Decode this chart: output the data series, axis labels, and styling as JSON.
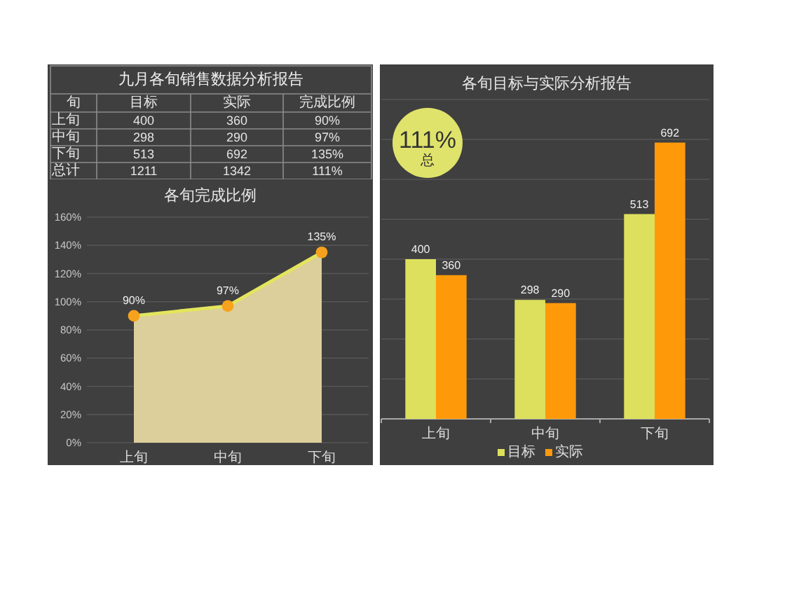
{
  "chart_data": [
    {
      "type": "other",
      "title": "九月各旬销售数据分析报告",
      "ylabel": "旬",
      "categories": [
        "目标",
        "实际",
        "完成比例"
      ],
      "y_categories": [
        "上旬",
        "中旬",
        "下旬",
        "总计"
      ],
      "cell_labels": [
        [
          "400",
          "360",
          "90%"
        ],
        [
          "298",
          "290",
          "97%"
        ],
        [
          "513",
          "692",
          "135%"
        ],
        [
          "1211",
          "1342",
          "111%"
        ]
      ]
    },
    {
      "type": "area",
      "title": "各旬完成比例",
      "categories": [
        "上旬",
        "中旬",
        "下旬"
      ],
      "series": [
        {
          "type": "area",
          "color": "#dccf9b",
          "colors": [
            "#f6a21c",
            "#f6a21c",
            "#f6a21c"
          ],
          "values": [
            90,
            97,
            135
          ],
          "value_labels": [
            "90%",
            "97%",
            "135%"
          ]
        }
      ],
      "marker": "circle",
      "ylim": [
        0,
        160
      ],
      "yticks": [
        {
          "value": 0,
          "label": "0%"
        },
        {
          "value": 20,
          "label": "20%"
        },
        {
          "value": 40,
          "label": "40%"
        },
        {
          "value": 60,
          "label": "60%"
        },
        {
          "value": 80,
          "label": "80%"
        },
        {
          "value": 100,
          "label": "100%"
        },
        {
          "value": 120,
          "label": "120%"
        },
        {
          "value": 140,
          "label": "140%"
        },
        {
          "value": 160,
          "label": "160%"
        }
      ],
      "grid": "y"
    },
    {
      "type": "bar",
      "title": "各旬目标与实际分析报告",
      "categories": [
        "上旬",
        "中旬",
        "下旬"
      ],
      "series": [
        {
          "name": "目标",
          "color": "#dde05c",
          "values": [
            400,
            298,
            513
          ]
        },
        {
          "name": "实际",
          "color": "#fe9a0a",
          "values": [
            360,
            290,
            692
          ]
        }
      ],
      "data_labels": true,
      "legend": "bottom",
      "ylim": [
        0,
        800
      ],
      "yticks": [
        {
          "value": 0,
          "label": null
        },
        {
          "value": 100,
          "label": null
        },
        {
          "value": 200,
          "label": null
        },
        {
          "value": 300,
          "label": null
        },
        {
          "value": 400,
          "label": null
        },
        {
          "value": 500,
          "label": null
        },
        {
          "value": 600,
          "label": null
        },
        {
          "value": 700,
          "label": null
        },
        {
          "value": 800,
          "label": null
        }
      ],
      "tick_labels": "x",
      "grid": "y",
      "annotations": [
        "111%",
        "总"
      ]
    }
  ]
}
